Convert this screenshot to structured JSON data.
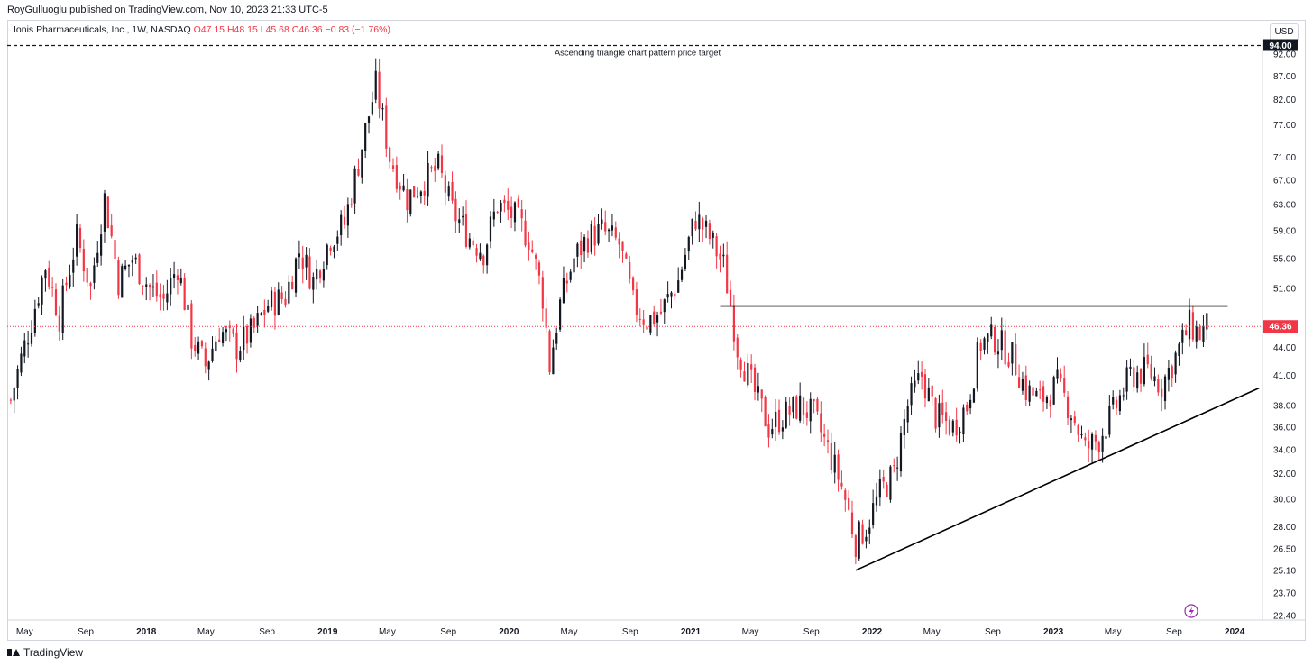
{
  "header": {
    "publisher_line": "RoyGulluoglu published on TradingView.com, Nov 10, 2023 21:33 UTC-5"
  },
  "symbol": {
    "name": "Ionis Pharmaceuticals, Inc., 1W, NASDAQ",
    "open": "O47.15",
    "high": "H48.15",
    "low": "L45.68",
    "close": "C46.36",
    "change": "−0.83 (−1.76%)"
  },
  "currency": "USD",
  "footer": {
    "brand": "TradingView"
  },
  "colors": {
    "up": "#131722",
    "down": "#f23645",
    "last_price": "#f23645",
    "alert_icon": "#9c27b0"
  },
  "chart_data": {
    "type": "candlestick",
    "ticker": "IONS",
    "interval": "1W",
    "yscale": "log",
    "ylim": [
      22.4,
      94
    ],
    "ytick_labels": [
      "94.00",
      "92.00",
      "87.00",
      "82.00",
      "77.00",
      "71.00",
      "67.00",
      "63.00",
      "59.00",
      "55.00",
      "51.00",
      "44.00",
      "41.00",
      "38.00",
      "36.00",
      "34.00",
      "32.00",
      "30.00",
      "28.00",
      "26.50",
      "25.10",
      "23.70",
      "22.40"
    ],
    "ytick_values": [
      94,
      92,
      87,
      82,
      77,
      71,
      67,
      63,
      59,
      55,
      51,
      44,
      41,
      38,
      36,
      34,
      32,
      30,
      28,
      26.5,
      25.1,
      23.7,
      22.4
    ],
    "xlim": [
      "2017-03-27",
      "2024-02-26"
    ],
    "xtick_labels": [
      "May",
      "Sep",
      "2018",
      "May",
      "Sep",
      "2019",
      "May",
      "Sep",
      "2020",
      "May",
      "Sep",
      "2021",
      "May",
      "Sep",
      "2022",
      "May",
      "Sep",
      "2023",
      "May",
      "Sep",
      "2024"
    ],
    "xtick_dates": [
      "2017-05-01",
      "2017-09-01",
      "2018-01-01",
      "2018-05-01",
      "2018-09-01",
      "2019-01-01",
      "2019-05-01",
      "2019-09-01",
      "2020-01-01",
      "2020-05-01",
      "2020-09-01",
      "2021-01-01",
      "2021-05-01",
      "2021-09-01",
      "2022-01-01",
      "2022-05-01",
      "2022-09-01",
      "2023-01-01",
      "2023-05-01",
      "2023-09-01",
      "2024-01-01"
    ],
    "price_path": [
      [
        "2017-04-03",
        38.5
      ],
      [
        "2017-05-15",
        47
      ],
      [
        "2017-06-12",
        54
      ],
      [
        "2017-07-10",
        47.5
      ],
      [
        "2017-08-14",
        58
      ],
      [
        "2017-09-11",
        51
      ],
      [
        "2017-10-09",
        64
      ],
      [
        "2017-11-06",
        52
      ],
      [
        "2017-12-04",
        55
      ],
      [
        "2018-01-08",
        51
      ],
      [
        "2018-02-05",
        49.5
      ],
      [
        "2018-03-05",
        54
      ],
      [
        "2018-04-02",
        45
      ],
      [
        "2018-04-30",
        42
      ],
      [
        "2018-05-28",
        46
      ],
      [
        "2018-07-02",
        44
      ],
      [
        "2018-08-06",
        46
      ],
      [
        "2018-09-03",
        49
      ],
      [
        "2018-10-08",
        50
      ],
      [
        "2018-11-05",
        56
      ],
      [
        "2018-12-03",
        52
      ],
      [
        "2019-01-07",
        58
      ],
      [
        "2019-02-04",
        60
      ],
      [
        "2019-03-04",
        70
      ],
      [
        "2019-04-08",
        85
      ],
      [
        "2019-05-06",
        71
      ],
      [
        "2019-06-10",
        64
      ],
      [
        "2019-07-15",
        67
      ],
      [
        "2019-08-12",
        69
      ],
      [
        "2019-09-09",
        62
      ],
      [
        "2019-10-14",
        58
      ],
      [
        "2019-11-11",
        56
      ],
      [
        "2019-12-09",
        63
      ],
      [
        "2020-01-13",
        61
      ],
      [
        "2020-02-10",
        58
      ],
      [
        "2020-03-09",
        50
      ],
      [
        "2020-03-23",
        42
      ],
      [
        "2020-04-13",
        49
      ],
      [
        "2020-05-11",
        55
      ],
      [
        "2020-06-08",
        58
      ],
      [
        "2020-07-06",
        59
      ],
      [
        "2020-08-10",
        57
      ],
      [
        "2020-09-07",
        49
      ],
      [
        "2020-10-05",
        47
      ],
      [
        "2020-11-02",
        48
      ],
      [
        "2020-12-07",
        52
      ],
      [
        "2021-01-11",
        61
      ],
      [
        "2021-02-08",
        58
      ],
      [
        "2021-03-08",
        54
      ],
      [
        "2021-04-05",
        44
      ],
      [
        "2021-05-03",
        40
      ],
      [
        "2021-06-07",
        36
      ],
      [
        "2021-07-05",
        37
      ],
      [
        "2021-08-09",
        38
      ],
      [
        "2021-09-06",
        37
      ],
      [
        "2021-10-04",
        34
      ],
      [
        "2021-11-01",
        31
      ],
      [
        "2021-11-29",
        27
      ],
      [
        "2021-12-20",
        28
      ],
      [
        "2022-01-17",
        30.5
      ],
      [
        "2022-02-14",
        32
      ],
      [
        "2022-03-14",
        38
      ],
      [
        "2022-04-11",
        41
      ],
      [
        "2022-05-09",
        37
      ],
      [
        "2022-06-13",
        36
      ],
      [
        "2022-07-11",
        38
      ],
      [
        "2022-08-08",
        44.5
      ],
      [
        "2022-09-05",
        45
      ],
      [
        "2022-10-10",
        43
      ],
      [
        "2022-11-07",
        39.5
      ],
      [
        "2022-12-05",
        38.5
      ],
      [
        "2023-01-09",
        40
      ],
      [
        "2023-02-06",
        37.5
      ],
      [
        "2023-03-06",
        34
      ],
      [
        "2023-04-03",
        35
      ],
      [
        "2023-05-08",
        38
      ],
      [
        "2023-06-05",
        41
      ],
      [
        "2023-07-10",
        41.5
      ],
      [
        "2023-08-07",
        40
      ],
      [
        "2023-09-04",
        43
      ],
      [
        "2023-10-02",
        46.5
      ],
      [
        "2023-10-23",
        45.5
      ],
      [
        "2023-11-06",
        46.36
      ]
    ],
    "annotations": [
      {
        "kind": "horizontal_dashed",
        "price": 94,
        "label": "Ascending triangle chart pattern price target"
      },
      {
        "kind": "trendline",
        "label": "resistance",
        "points": [
          [
            "2021-03-01",
            48.8
          ],
          [
            "2023-12-18",
            48.8
          ]
        ]
      },
      {
        "kind": "trendline",
        "label": "ascending support",
        "points": [
          [
            "2021-11-29",
            25.1
          ],
          [
            "2024-02-19",
            39.7
          ]
        ]
      },
      {
        "kind": "horizontal_dotted",
        "price": 46.36
      }
    ],
    "last_price_label": "46.36",
    "target_price_label": "94.00",
    "target_label": "Ascending triangle chart pattern price target"
  }
}
